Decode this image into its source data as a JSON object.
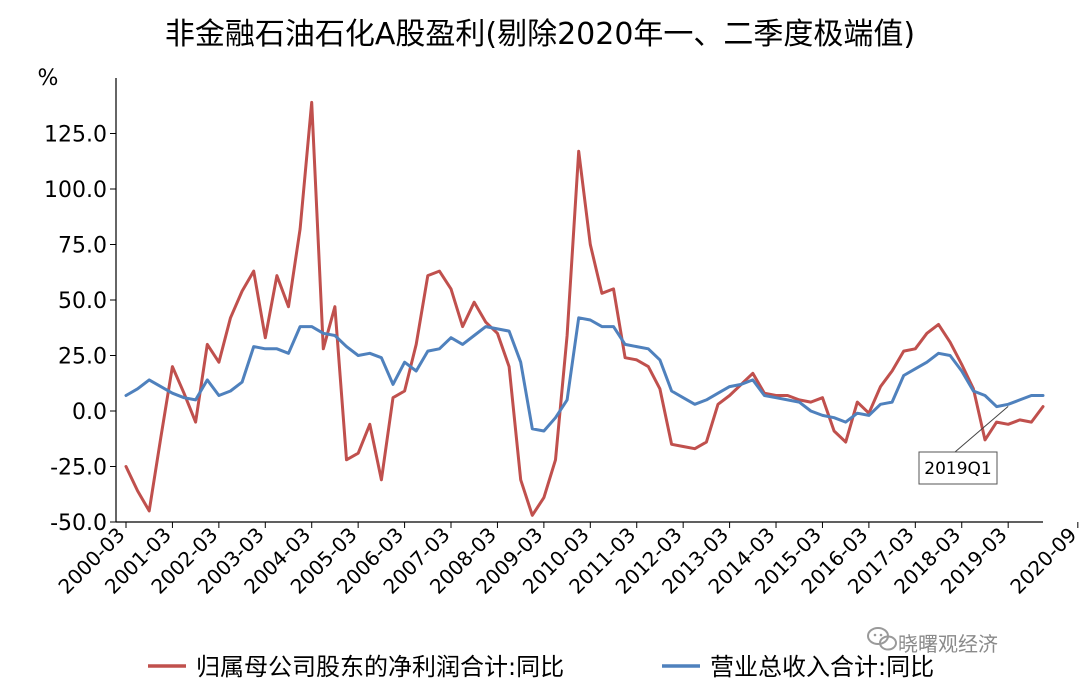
{
  "chart_data": {
    "type": "line",
    "title": "非金融石油石化A股盈利(剔除2020年一、二季度极端值)",
    "ylabel": "%",
    "xlabel": "",
    "ylim": [
      -50,
      150
    ],
    "y_ticks": [
      "-50.0",
      "-25.0",
      "0.0",
      "25.0",
      "50.0",
      "75.0",
      "100.0",
      "125.0"
    ],
    "y_tick_values": [
      -50,
      -25,
      0,
      25,
      50,
      75,
      100,
      125
    ],
    "x_tick_labels": [
      "2000-03",
      "2001-03",
      "2002-03",
      "2003-03",
      "2004-03",
      "2005-03",
      "2006-03",
      "2007-03",
      "2008-03",
      "2009-03",
      "2010-03",
      "2011-03",
      "2012-03",
      "2013-03",
      "2014-03",
      "2015-03",
      "2016-03",
      "2017-03",
      "2018-03",
      "2019-03",
      "2020-09"
    ],
    "x_tick_quarter_index": [
      0,
      4,
      8,
      12,
      16,
      20,
      24,
      28,
      32,
      36,
      40,
      44,
      48,
      52,
      56,
      60,
      64,
      68,
      72,
      76,
      82
    ],
    "grid": false,
    "legend_position": "bottom",
    "series": [
      {
        "name": "归属母公司股东的净利润合计:同比",
        "color": "#c0504d",
        "values": [
          -25,
          -36,
          -45,
          -12,
          20,
          8,
          -5,
          30,
          22,
          42,
          54,
          63,
          33,
          61,
          47,
          82,
          139,
          28,
          47,
          -22,
          -19,
          -6,
          -31,
          6,
          9,
          30,
          61,
          63,
          55,
          38,
          49,
          40,
          35,
          20,
          -31,
          -47,
          -39,
          -22,
          34,
          117,
          75,
          53,
          55,
          24,
          23,
          20,
          10,
          -15,
          -16,
          -17,
          -14,
          3,
          7,
          12,
          17,
          8,
          7,
          7,
          5,
          4,
          6,
          -9,
          -14,
          4,
          -1,
          11,
          18,
          27,
          28,
          35,
          39,
          31,
          21,
          10,
          -13,
          -5,
          -6,
          -4,
          -5,
          2
        ]
      },
      {
        "name": "营业总收入合计:同比",
        "color": "#4f81bd",
        "values": [
          7,
          10,
          14,
          11,
          8,
          6,
          5,
          14,
          7,
          9,
          13,
          29,
          28,
          28,
          26,
          38,
          38,
          35,
          34,
          29,
          25,
          26,
          24,
          12,
          22,
          18,
          27,
          28,
          33,
          30,
          34,
          38,
          37,
          36,
          22,
          -8,
          -9,
          -3,
          5,
          42,
          41,
          38,
          38,
          30,
          29,
          28,
          23,
          9,
          6,
          3,
          5,
          8,
          11,
          12,
          14,
          7,
          6,
          5,
          4,
          0,
          -2,
          -3,
          -5,
          -1,
          -2,
          3,
          4,
          16,
          19,
          22,
          26,
          25,
          18,
          9,
          7,
          2,
          3,
          5,
          7,
          7
        ]
      }
    ],
    "annotations": [
      {
        "text": "2019Q1",
        "points_to_quarter_index": 76
      }
    ]
  },
  "watermark": {
    "icon": "wechat-icon",
    "text": "晓曙观经济"
  }
}
